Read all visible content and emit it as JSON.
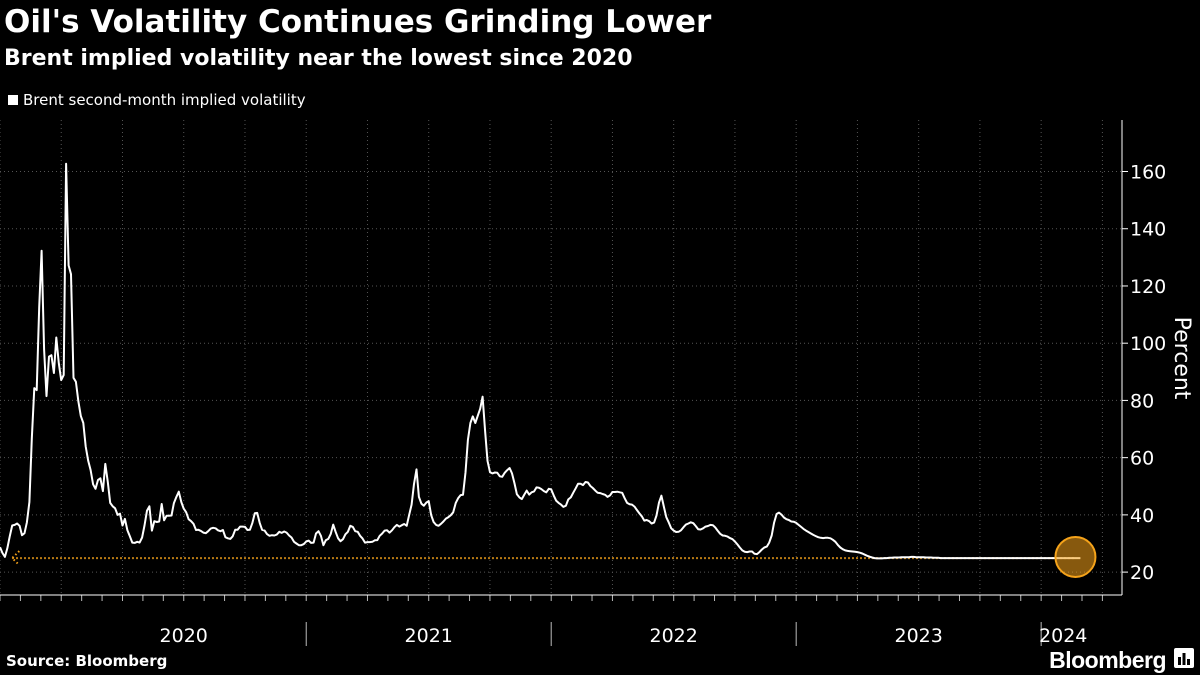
{
  "header": {
    "title": "Oil's Volatility Continues Grinding Lower",
    "subtitle": "Brent implied volatility near the lowest since 2020"
  },
  "footer": {
    "source": "Source: Bloomberg",
    "brand": "Bloomberg",
    "brand_icon": "bloomberg-chart-icon"
  },
  "colors": {
    "background": "#000000",
    "line": "#ffffff",
    "grid": "#555555",
    "highlight": "#f5a31a"
  },
  "chart_data": {
    "type": "line",
    "title": "Oil's Volatility Continues Grinding Lower",
    "subtitle": "Brent implied volatility near the lowest since 2020",
    "ylabel": "Percent",
    "xlabel": "",
    "ylim": [
      12,
      178
    ],
    "xlim": [
      2019.75,
      2024.33
    ],
    "yticks": [
      20,
      40,
      60,
      80,
      100,
      120,
      140,
      160
    ],
    "ytick_labels": [
      "20",
      "40",
      "60",
      "80",
      "100",
      "120",
      "140",
      "160"
    ],
    "xtick_labels": [
      {
        "label": "2020",
        "x": 2020.5
      },
      {
        "label": "2021",
        "x": 2021.5
      },
      {
        "label": "2022",
        "x": 2022.5
      },
      {
        "label": "2023",
        "x": 2023.5
      },
      {
        "label": "2024",
        "x": 2024.09
      }
    ],
    "year_boundaries": [
      2021.0,
      2022.0,
      2023.0,
      2024.0
    ],
    "grid": true,
    "legend": {
      "position": "top-left",
      "entries": [
        "Brent second-month implied volatility"
      ]
    },
    "series": [
      {
        "name": "Brent second-month implied volatility",
        "x": [
          2019.75,
          2019.76,
          2019.77,
          2019.78,
          2019.79,
          2019.8,
          2019.81,
          2019.82,
          2019.83,
          2019.84,
          2019.85,
          2019.86,
          2019.87,
          2019.88,
          2019.89,
          2019.9,
          2019.91,
          2019.92,
          2019.93,
          2019.94,
          2019.95,
          2019.96,
          2019.97,
          2019.98,
          2019.99,
          2020.0,
          2020.01,
          2020.02,
          2020.03,
          2020.04,
          2020.05,
          2020.06,
          2020.07,
          2020.08,
          2020.09,
          2020.1,
          2020.11,
          2020.12,
          2020.13,
          2020.14,
          2020.15,
          2020.16,
          2020.17,
          2020.18,
          2020.19,
          2020.2,
          2020.21,
          2020.22,
          2020.23,
          2020.24,
          2020.25,
          2020.26,
          2020.27,
          2020.28,
          2020.29,
          2020.3,
          2020.31,
          2020.32,
          2020.33,
          2020.34,
          2020.35,
          2020.36,
          2020.37,
          2020.38,
          2020.39,
          2020.4,
          2020.41,
          2020.42,
          2020.43,
          2020.44,
          2020.45,
          2020.46,
          2020.47,
          2020.48,
          2020.49,
          2020.5,
          2020.51,
          2020.52,
          2020.53,
          2020.54,
          2020.55,
          2020.56,
          2020.57,
          2020.58,
          2020.59,
          2020.6,
          2020.61,
          2020.62,
          2020.63,
          2020.64,
          2020.65,
          2020.66,
          2020.67,
          2020.68,
          2020.69,
          2020.7,
          2020.71,
          2020.72,
          2020.73,
          2020.74,
          2020.75,
          2020.76,
          2020.77,
          2020.78,
          2020.79,
          2020.8,
          2020.81,
          2020.82,
          2020.83,
          2020.84,
          2020.85,
          2020.86,
          2020.87,
          2020.88,
          2020.89,
          2020.9,
          2020.91,
          2020.92,
          2020.93,
          2020.94,
          2020.95,
          2020.96,
          2020.97,
          2020.98,
          2020.99,
          2021.0,
          2021.01,
          2021.02,
          2021.03,
          2021.04,
          2021.05,
          2021.06,
          2021.07,
          2021.08,
          2021.09,
          2021.1,
          2021.11,
          2021.12,
          2021.13,
          2021.14,
          2021.15,
          2021.16,
          2021.17,
          2021.18,
          2021.19,
          2021.2,
          2021.21,
          2021.22,
          2021.23,
          2021.24,
          2021.25,
          2021.26,
          2021.27,
          2021.28,
          2021.29,
          2021.3,
          2021.31,
          2021.32,
          2021.33,
          2021.34,
          2021.35,
          2021.36,
          2021.37,
          2021.38,
          2021.39,
          2021.4,
          2021.41,
          2021.42,
          2021.43,
          2021.44,
          2021.45,
          2021.46,
          2021.47,
          2021.48,
          2021.49,
          2021.5,
          2021.51,
          2021.52,
          2021.53,
          2021.54,
          2021.55,
          2021.56,
          2021.57,
          2021.58,
          2021.59,
          2021.6,
          2021.61,
          2021.62,
          2021.63,
          2021.64,
          2021.65,
          2021.66,
          2021.67,
          2021.68,
          2021.69,
          2021.7,
          2021.71,
          2021.72,
          2021.73,
          2021.74,
          2021.75,
          2021.76,
          2021.77,
          2021.78,
          2021.79,
          2021.8,
          2021.81,
          2021.82,
          2021.83,
          2021.84,
          2021.85,
          2021.86,
          2021.87,
          2021.88,
          2021.89,
          2021.9,
          2021.91,
          2021.92,
          2021.93,
          2021.94,
          2021.95,
          2021.96,
          2021.97,
          2021.98,
          2021.99,
          2022.0,
          2022.01,
          2022.02,
          2022.03,
          2022.04,
          2022.05,
          2022.06,
          2022.07,
          2022.08,
          2022.09,
          2022.1,
          2022.11,
          2022.12,
          2022.13,
          2022.14,
          2022.15,
          2022.16,
          2022.17,
          2022.18,
          2022.19,
          2022.2,
          2022.21,
          2022.22,
          2022.23,
          2022.24,
          2022.25,
          2022.26,
          2022.27,
          2022.28,
          2022.29,
          2022.3,
          2022.31,
          2022.32,
          2022.33,
          2022.34,
          2022.35,
          2022.36,
          2022.37,
          2022.38,
          2022.39,
          2022.4,
          2022.41,
          2022.42,
          2022.43,
          2022.44,
          2022.45,
          2022.46,
          2022.47,
          2022.48,
          2022.49,
          2022.5,
          2022.51,
          2022.52,
          2022.53,
          2022.54,
          2022.55,
          2022.56,
          2022.57,
          2022.58,
          2022.59,
          2022.6,
          2022.61,
          2022.62,
          2022.63,
          2022.64,
          2022.65,
          2022.66,
          2022.67,
          2022.68,
          2022.69,
          2022.7,
          2022.71,
          2022.72,
          2022.73,
          2022.74,
          2022.75,
          2022.76,
          2022.77,
          2022.78,
          2022.79,
          2022.8,
          2022.81,
          2022.82,
          2022.83,
          2022.84,
          2022.85,
          2022.86,
          2022.87,
          2022.88,
          2022.89,
          2022.9,
          2022.91,
          2022.92,
          2022.93,
          2022.94,
          2022.95,
          2022.96,
          2022.97,
          2022.98,
          2022.99,
          2023.0,
          2023.01,
          2023.02,
          2023.03,
          2023.04,
          2023.05,
          2023.06,
          2023.07,
          2023.08,
          2023.09,
          2023.1,
          2023.11,
          2023.12,
          2023.13,
          2023.14,
          2023.15,
          2023.16,
          2023.17,
          2023.18,
          2023.19,
          2023.2,
          2023.21,
          2023.22,
          2023.23,
          2023.24,
          2023.25,
          2023.26,
          2023.27,
          2023.28,
          2023.29,
          2023.3,
          2023.31,
          2023.32,
          2023.33,
          2023.34,
          2023.35,
          2023.36,
          2023.37,
          2023.38,
          2023.39,
          2023.4,
          2023.41,
          2023.42,
          2023.43,
          2023.44,
          2023.45,
          2023.46,
          2023.47,
          2023.48,
          2023.49,
          2023.5,
          2023.51,
          2023.52,
          2023.53,
          2023.54,
          2023.55,
          2023.56,
          2023.57,
          2023.58,
          2023.59,
          2023.6,
          2023.61,
          2023.62,
          2023.63,
          2023.64,
          2023.65,
          2023.66,
          2023.67,
          2023.68,
          2023.69,
          2023.7,
          2023.71,
          2023.72,
          2023.73,
          2023.74,
          2023.75,
          2023.76,
          2023.77,
          2023.78,
          2023.79,
          2023.8,
          2023.81,
          2023.82,
          2023.83,
          2023.84,
          2023.85,
          2023.86,
          2023.87,
          2023.88,
          2023.89,
          2023.9,
          2023.91,
          2023.92,
          2023.93,
          2023.94,
          2023.95,
          2023.96,
          2023.97,
          2023.98,
          2023.99,
          2024.0,
          2024.01,
          2024.02,
          2024.03,
          2024.04,
          2024.05,
          2024.06,
          2024.07,
          2024.08,
          2024.09,
          2024.1,
          2024.11,
          2024.12,
          2024.13,
          2024.14,
          2024.15,
          2024.16
        ],
        "values": [
          28.7,
          26.7,
          25.3,
          28.3,
          32.6,
          36.3,
          36.5,
          37.0,
          36.2,
          32.9,
          33.6,
          37.4,
          44.5,
          66.6,
          84.3,
          83.6,
          112.6,
          132.3,
          97.8,
          81.5,
          95.3,
          95.8,
          89.6,
          102.0,
          93.0,
          87.1,
          88.9,
          162.7,
          127.2,
          124.1,
          87.9,
          86.5,
          79.6,
          74.6,
          72.1,
          63.9,
          58.9,
          55.7,
          50.7,
          49.1,
          52.2,
          52.8,
          48.3,
          57.8,
          51.5,
          44.2,
          43.0,
          42.3,
          40.0,
          40.4,
          36.3,
          38.6,
          34.6,
          32.6,
          30.3,
          30.2,
          30.6,
          30.3,
          32.1,
          36.3,
          41.5,
          43.0,
          34.5,
          37.8,
          37.5,
          37.7,
          43.8,
          38.1,
          39.7,
          39.7,
          39.8,
          44.1,
          46.3,
          48.1,
          44.5,
          42.2,
          40.9,
          38.5,
          37.8,
          36.9,
          34.7,
          34.8,
          34.4,
          33.8,
          33.6,
          34.3,
          35.2,
          35.5,
          35.3,
          34.6,
          34.3,
          34.7,
          32.2,
          31.8,
          31.6,
          32.5,
          34.8,
          34.8,
          35.9,
          35.9,
          35.8,
          34.7,
          34.8,
          37.1,
          40.6,
          40.7,
          37.2,
          34.8,
          34.5,
          33.3,
          32.7,
          32.9,
          32.8,
          33.1,
          34.1,
          33.7,
          34.2,
          33.8,
          32.8,
          32.1,
          30.6,
          30.0,
          29.4,
          29.4,
          29.8,
          30.7,
          31.0,
          30.2,
          30.3,
          33.5,
          34.3,
          32.7,
          29.4,
          31.1,
          31.6,
          33.3,
          36.6,
          34.1,
          31.8,
          30.8,
          31.5,
          33.2,
          34.1,
          36.2,
          35.8,
          34.3,
          34.1,
          32.7,
          31.7,
          30.3,
          30.5,
          30.5,
          30.6,
          31.1,
          31.2,
          32.7,
          33.5,
          34.5,
          34.6,
          33.8,
          34.6,
          35.7,
          36.5,
          35.9,
          36.4,
          36.8,
          36.2,
          39.9,
          43.6,
          50.8,
          55.9,
          46.3,
          43.9,
          43.2,
          44.3,
          44.8,
          39.9,
          37.5,
          36.5,
          36.2,
          36.9,
          37.7,
          38.7,
          39.2,
          39.9,
          40.9,
          44.1,
          45.8,
          46.9,
          47.0,
          54.8,
          66.2,
          72.1,
          74.4,
          72.1,
          74.6,
          77.1,
          81.3,
          69.3,
          58.9,
          54.9,
          54.5,
          54.8,
          54.7,
          53.5,
          53.3,
          54.7,
          55.6,
          56.4,
          54.5,
          51.0,
          47.2,
          46.1,
          45.5,
          47.1,
          48.5,
          47.1,
          47.9,
          48.2,
          49.6,
          49.5,
          49.0,
          48.3,
          47.9,
          49.1,
          48.9,
          46.8,
          45.0,
          44.2,
          43.6,
          42.8,
          43.2,
          45.4,
          46.1,
          47.7,
          49.3,
          50.9,
          50.9,
          50.4,
          51.5,
          51.3,
          50.1,
          49.4,
          48.5,
          47.7,
          47.6,
          47.3,
          47.0,
          46.3,
          46.8,
          48.0,
          48.0,
          48.1,
          47.9,
          47.7,
          45.8,
          44.2,
          43.7,
          43.6,
          42.9,
          41.7,
          40.5,
          39.5,
          38.0,
          38.2,
          37.8,
          37.0,
          37.3,
          39.8,
          44.3,
          46.7,
          42.8,
          39.2,
          37.3,
          35.3,
          34.5,
          34.0,
          34.1,
          34.6,
          35.7,
          36.6,
          37.0,
          37.4,
          37.1,
          36.1,
          35.0,
          34.9,
          35.3,
          35.9,
          36.1,
          36.5,
          36.4,
          35.6,
          34.4,
          33.4,
          32.8,
          32.7,
          32.4,
          31.9,
          31.5,
          30.7,
          29.7,
          28.6,
          27.6,
          27.1,
          27.0,
          27.2,
          27.2,
          26.4,
          26.3,
          27.0,
          27.9,
          28.6,
          28.9,
          30.3,
          32.8,
          37.3,
          40.3,
          40.8,
          40.1,
          39.1,
          38.5,
          38.2,
          37.7,
          37.6,
          37.2,
          36.5,
          35.8,
          35.1,
          34.5,
          34.0,
          33.5,
          33.0,
          32.6,
          32.2,
          32.0,
          31.9,
          32.0,
          32.0,
          31.8,
          31.3,
          30.6,
          29.5,
          28.6,
          28.0,
          27.6,
          27.4,
          27.3,
          27.2,
          27.1,
          27.0,
          26.8,
          26.5,
          26.1,
          25.7,
          25.4,
          25.1,
          24.9,
          24.8,
          24.8,
          24.8,
          24.9,
          24.9,
          25.0,
          25.0,
          25.1,
          25.1,
          25.1,
          25.2,
          25.2,
          25.2,
          25.2,
          25.3,
          25.3,
          25.2,
          25.2,
          25.2,
          25.2,
          25.1,
          25.1,
          25.1,
          25.0,
          25.0,
          25.0,
          24.9,
          24.9,
          24.9,
          24.9,
          24.9,
          24.9,
          24.9,
          24.9,
          24.9,
          24.9,
          24.9,
          24.9,
          24.9,
          24.9,
          24.9,
          24.9,
          24.9,
          24.9,
          24.9,
          24.9,
          24.9,
          24.9,
          24.9,
          24.9,
          24.9,
          24.9,
          24.9,
          24.9,
          24.9,
          24.9,
          24.9,
          24.9,
          24.9,
          24.9,
          24.9,
          24.9,
          24.9,
          24.9,
          24.9,
          24.9,
          24.9,
          24.9,
          24.9,
          24.9,
          24.9,
          24.9,
          24.9,
          24.9,
          24.9,
          24.9,
          24.9,
          24.9,
          24.9,
          24.9,
          24.9,
          24.9,
          24.9,
          24.9
        ]
      }
    ],
    "annotation": {
      "type": "reference-line",
      "y": 24.9,
      "x_start": 2019.8,
      "x_end": 2024.14,
      "color": "#f5a31a",
      "style": "dotted",
      "arrow": "left",
      "circle_at": {
        "x": 2024.14,
        "y": 25.3
      }
    }
  }
}
